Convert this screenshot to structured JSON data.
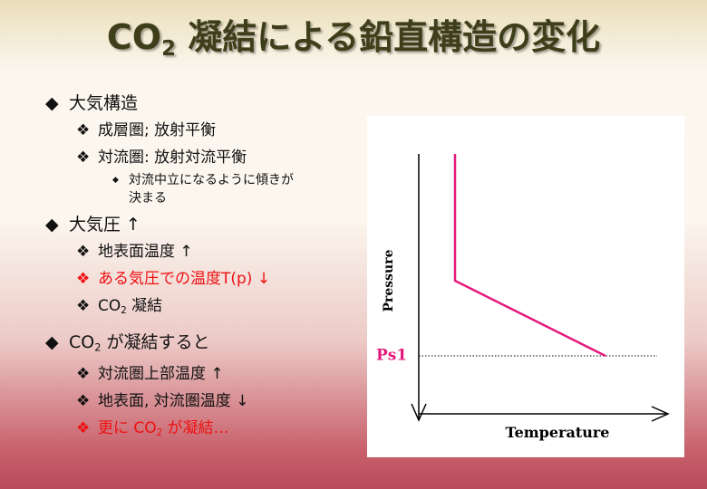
{
  "slide": {
    "title": {
      "text": "CO",
      "sub": "2",
      "rest": " 凝結による鉛直構造の変化"
    },
    "bullets": [
      {
        "text": "大気構造"
      },
      {
        "text": "成層圏; 放射平衡"
      },
      {
        "text": "対流圏: 放射対流平衡"
      },
      {
        "text": "対流中立になるように傾きが決まる"
      },
      {
        "text": "大気圧 ↑"
      },
      {
        "text": "地表面温度 ↑"
      },
      {
        "text": "ある気圧での温度T(p) ↓"
      },
      {
        "text": "CO",
        "sub": "2",
        "rest": " 凝結"
      },
      {
        "text": "CO",
        "sub": "2",
        "rest": " が凝結すると"
      },
      {
        "text": "対流圏上部温度 ↑"
      },
      {
        "text": "地表面, 対流圏温度 ↓"
      },
      {
        "text": "更に CO",
        "sub": "2",
        "rest": " が凝結…"
      }
    ],
    "diagram": {
      "y_axis_label": "Pressure",
      "x_axis_label": "Temperature",
      "level_label": "Ps1"
    }
  }
}
